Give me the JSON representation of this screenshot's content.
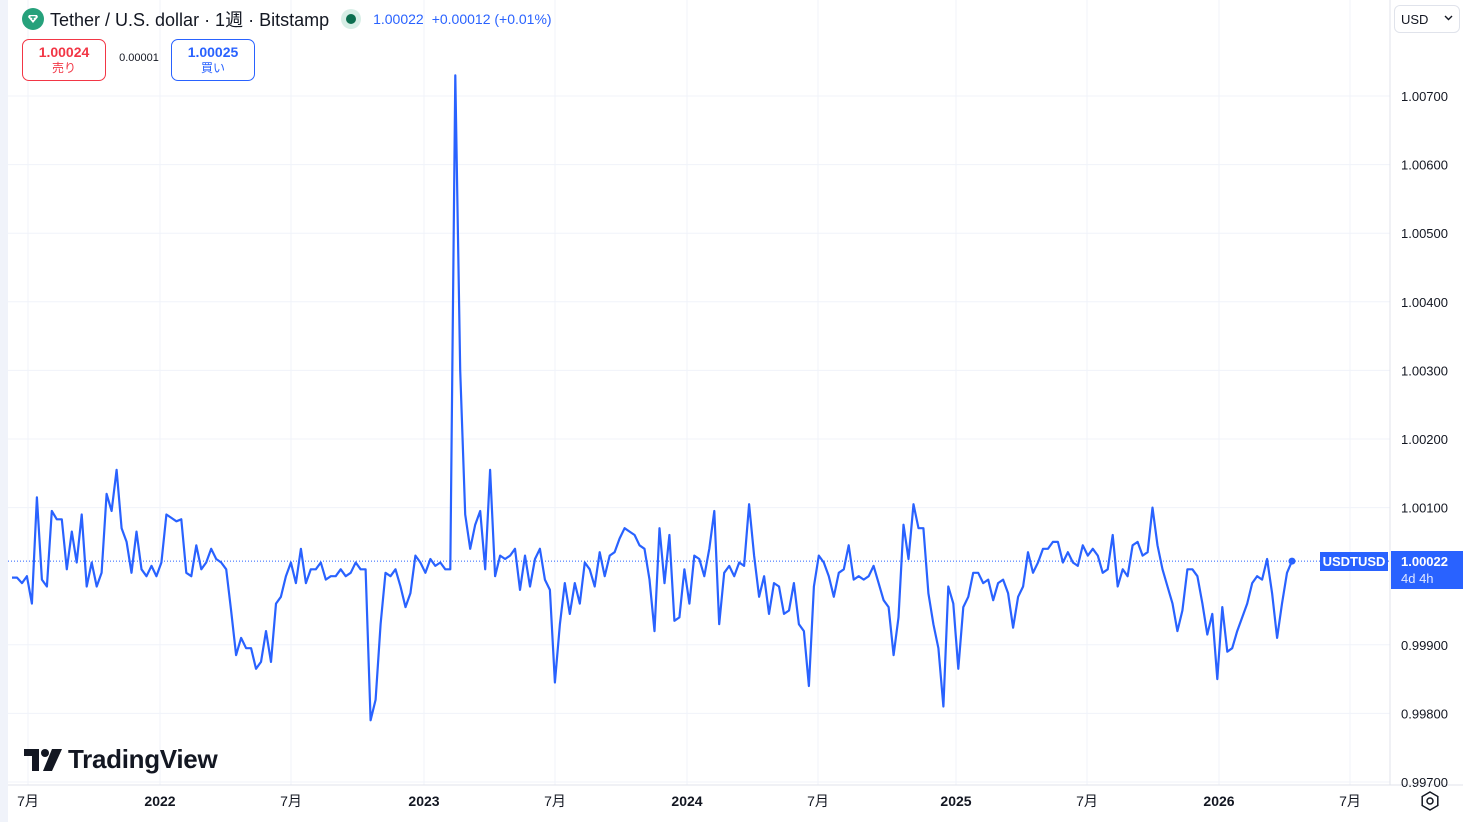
{
  "header": {
    "title": "Tether / U.S. dollar · 1週 · Bitstamp",
    "last_price": "1.00022",
    "change": "+0.00012 (+0.01%)",
    "logo_icon": "tether-icon",
    "status_icon": "market-status-dot"
  },
  "trade": {
    "sell_price": "1.00024",
    "sell_label": "売り",
    "spread": "0.00001",
    "buy_price": "1.00025",
    "buy_label": "買い"
  },
  "currency_select": {
    "value": "USD"
  },
  "price_tag": {
    "symbol": "USDTUSD",
    "price": "1.00022",
    "countdown": "4d 4h"
  },
  "watermark": {
    "text": "TradingView"
  },
  "colors": {
    "line": "#2962ff",
    "sell": "#f23645",
    "buy": "#2962ff",
    "grid": "#f0f3fa"
  },
  "chart_data": {
    "type": "line",
    "ylim": [
      0.9969,
      1.0081
    ],
    "y_ticks": [
      "1.00700",
      "1.00600",
      "1.00500",
      "1.00400",
      "1.00300",
      "1.00200",
      "1.00100",
      "0.99900",
      "0.99800",
      "0.99700"
    ],
    "x_ticks": [
      {
        "label": "7月",
        "year": false
      },
      {
        "label": "2022",
        "year": true
      },
      {
        "label": "7月",
        "year": false
      },
      {
        "label": "2023",
        "year": true
      },
      {
        "label": "7月",
        "year": false
      },
      {
        "label": "2024",
        "year": true
      },
      {
        "label": "7月",
        "year": false
      },
      {
        "label": "2025",
        "year": true
      },
      {
        "label": "7月",
        "year": false
      },
      {
        "label": "2026",
        "year": true
      },
      {
        "label": "7月",
        "year": false
      }
    ],
    "series": [
      {
        "values": [
          0.99998,
          0.99998,
          0.9999,
          1.0,
          0.9996,
          1.00115,
          0.99995,
          0.99985,
          1.00095,
          1.00083,
          1.00083,
          1.0001,
          1.00065,
          1.0002,
          1.0009,
          0.99985,
          1.0002,
          0.99985,
          1.00005,
          1.0012,
          1.00095,
          1.00155,
          1.0007,
          1.0005,
          1.00005,
          1.00065,
          1.0001,
          1.0,
          1.00015,
          1.0,
          1.0002,
          1.0009,
          1.00085,
          1.0008,
          1.00083,
          1.00005,
          1.0,
          1.00045,
          1.0001,
          1.0002,
          1.0004,
          1.00025,
          1.0002,
          1.0001,
          0.9995,
          0.99885,
          0.9991,
          0.99895,
          0.99895,
          0.99865,
          0.99875,
          0.9992,
          0.99875,
          0.9996,
          0.9997,
          1.0,
          1.0002,
          0.9999,
          1.0004,
          0.9999,
          1.0001,
          1.0001,
          1.0002,
          0.99995,
          1.0,
          1.0,
          1.0001,
          1.0,
          1.00005,
          1.0002,
          1.0001,
          1.0001,
          0.9979,
          0.9982,
          0.9993,
          1.00005,
          1.0,
          1.0001,
          0.99985,
          0.99955,
          0.99975,
          1.0003,
          1.0002,
          1.00005,
          1.00025,
          1.00015,
          1.0002,
          1.0001,
          1.0001,
          1.0073,
          1.003,
          1.0009,
          1.0004,
          1.00075,
          1.00095,
          1.0001,
          1.00155,
          1.0,
          1.0003,
          1.00025,
          1.0003,
          1.0004,
          0.9998,
          1.0003,
          0.99985,
          1.00025,
          1.0004,
          0.99995,
          0.9998,
          0.99845,
          0.9993,
          0.9999,
          0.99945,
          0.9999,
          0.9996,
          1.0002,
          1.0001,
          0.99985,
          1.00035,
          1.0,
          1.0003,
          1.00035,
          1.00055,
          1.0007,
          1.00065,
          1.0006,
          1.00045,
          1.0004,
          0.99995,
          0.9992,
          1.0007,
          0.9999,
          1.0006,
          0.99935,
          0.9994,
          1.0001,
          0.9996,
          1.0003,
          1.00025,
          1.0,
          1.0004,
          1.00095,
          0.9993,
          1.00005,
          1.00015,
          1.0,
          1.0002,
          1.00015,
          1.00105,
          1.0003,
          0.9997,
          1.0,
          0.99945,
          0.9999,
          0.99985,
          0.99945,
          0.9995,
          0.9999,
          0.9993,
          0.9992,
          0.9984,
          0.99985,
          1.0003,
          1.0002,
          1.0,
          0.9997,
          1.00005,
          1.0001,
          1.00045,
          0.99995,
          1.0,
          0.99995,
          1.0,
          1.00015,
          0.9999,
          0.99965,
          0.99955,
          0.99885,
          0.9994,
          1.00075,
          1.00025,
          1.00105,
          1.0007,
          1.0007,
          0.99975,
          0.9993,
          0.99895,
          0.9981,
          0.99985,
          0.9996,
          0.99865,
          0.99955,
          0.9997,
          1.00005,
          1.00005,
          0.9999,
          0.99995,
          0.99965,
          0.9999,
          0.99995,
          0.99975,
          0.99925,
          0.9997,
          0.99985,
          1.00035,
          1.00005,
          1.0002,
          1.0004,
          1.0004,
          1.0005,
          1.0005,
          1.0002,
          1.00035,
          1.0002,
          1.00015,
          1.00045,
          1.0003,
          1.0004,
          1.0003,
          1.00005,
          1.0001,
          1.0006,
          0.99985,
          1.0001,
          1.0,
          1.00045,
          1.0005,
          1.0003,
          1.00035,
          1.001,
          1.00045,
          1.0001,
          0.99985,
          0.9996,
          0.9992,
          0.9995,
          1.0001,
          1.0001,
          1.0,
          0.9996,
          0.99915,
          0.99945,
          0.9985,
          0.99955,
          0.9989,
          0.99895,
          0.9992,
          0.9994,
          0.9996,
          0.9999,
          1.0,
          0.99995,
          1.00025,
          0.99975,
          0.9991,
          0.9996,
          1.00005,
          1.00022
        ]
      }
    ]
  }
}
